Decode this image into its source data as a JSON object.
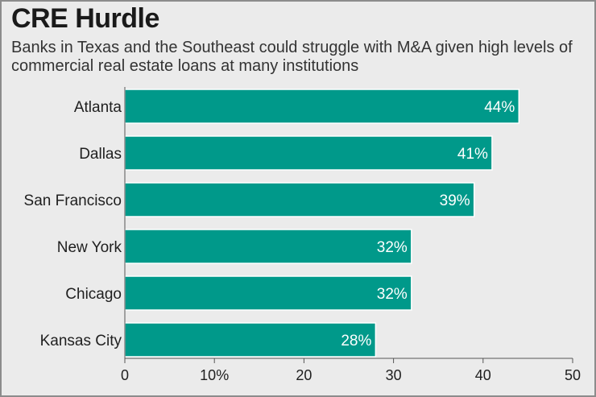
{
  "chart_data": {
    "type": "bar",
    "orientation": "horizontal",
    "title": "CRE Hurdle",
    "subtitle": "Banks in Texas and the Southeast could struggle with M&A given high levels of commercial real estate loans at many institutions",
    "categories": [
      "Atlanta",
      "Dallas",
      "San Francisco",
      "New York",
      "Chicago",
      "Kansas City"
    ],
    "values": [
      44,
      41,
      39,
      32,
      32,
      28
    ],
    "data_labels": [
      "44%",
      "41%",
      "39%",
      "32%",
      "32%",
      "28%"
    ],
    "xlim": [
      0,
      50
    ],
    "x_ticks": [
      0,
      10,
      20,
      30,
      40,
      50
    ],
    "x_tick_labels": [
      "0",
      "10%",
      "20",
      "30",
      "40",
      "50"
    ],
    "xlabel": "",
    "ylabel": "",
    "grid": false,
    "bar_color": "#00998a",
    "background_color": "#ebebeb"
  }
}
